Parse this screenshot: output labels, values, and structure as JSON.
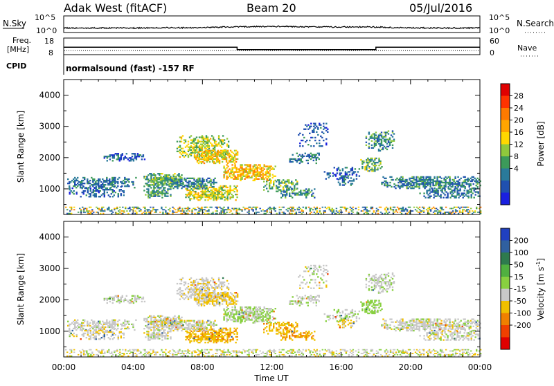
{
  "header": {
    "title": "Adak West (fitACF)",
    "beam": "Beam 20",
    "date": "05/Jul/2016"
  },
  "top_panels": {
    "nsky_label": "N.Sky",
    "nsearch_label": "N.Search",
    "noise_ticks_left": [
      "10^5",
      "10^0"
    ],
    "noise_ticks_right": [
      "10^5",
      "10^0"
    ],
    "freq_label_1": "Freq.",
    "freq_label_2": "[MHz]",
    "freq_ticks": [
      "18",
      "8"
    ],
    "nave_label": "Nave",
    "nave_ticks": [
      "60",
      "0"
    ],
    "cpid_label": "CPID",
    "cpid_text": "normalsound (fast) -157 RF"
  },
  "power_colorbar": {
    "label": "Power [dB]",
    "ticks": [
      "28",
      "24",
      "20",
      "16",
      "12",
      "8",
      "4"
    ],
    "colors": [
      "#e00000",
      "#ff3300",
      "#ff7a00",
      "#ffa500",
      "#ffd700",
      "#90c83c",
      "#3c9a5a",
      "#2a7a9a",
      "#2050b0",
      "#1a20e0"
    ]
  },
  "velocity_colorbar": {
    "label": "Velocity [m s",
    "label_sup": "-1",
    "label_end": "]",
    "ticks": [
      "200",
      "100",
      "50",
      "15",
      "-15",
      "-50",
      "-100",
      "-200"
    ],
    "colors": [
      "#2040c0",
      "#3060a0",
      "#2e7a4e",
      "#50b040",
      "#88d040",
      "#c8c8c8",
      "#f0c000",
      "#f08000",
      "#f04000",
      "#e00000"
    ]
  },
  "chart_data": [
    {
      "type": "line",
      "name": "noise",
      "y_scale": "log",
      "xlim": [
        0,
        24
      ]
    },
    {
      "type": "line",
      "name": "frequency",
      "x": [
        0,
        10.0,
        10.0,
        18.0,
        18.0,
        24
      ],
      "y": [
        12.5,
        12.5,
        11.0,
        11.0,
        12.5,
        12.5
      ],
      "ylim": [
        8,
        18
      ]
    },
    {
      "type": "heatmap",
      "name": "power",
      "ylabel": "Slant Range [km]",
      "yticks": [
        "1000",
        "2000",
        "3000",
        "4000"
      ],
      "ylim": [
        180,
        4500
      ],
      "xlim": [
        0,
        24
      ],
      "clim": [
        0,
        30
      ]
    },
    {
      "type": "heatmap",
      "name": "velocity",
      "ylabel": "Slant Range [km]",
      "yticks": [
        "1000",
        "2000",
        "3000",
        "4000"
      ],
      "ylim": [
        180,
        4500
      ],
      "xlim": [
        0,
        24
      ],
      "xticks": [
        "00:00",
        "04:00",
        "08:00",
        "12:00",
        "16:00",
        "20:00",
        "00:00"
      ],
      "xlabel": "Time UT",
      "clim": [
        -250,
        250
      ]
    }
  ]
}
